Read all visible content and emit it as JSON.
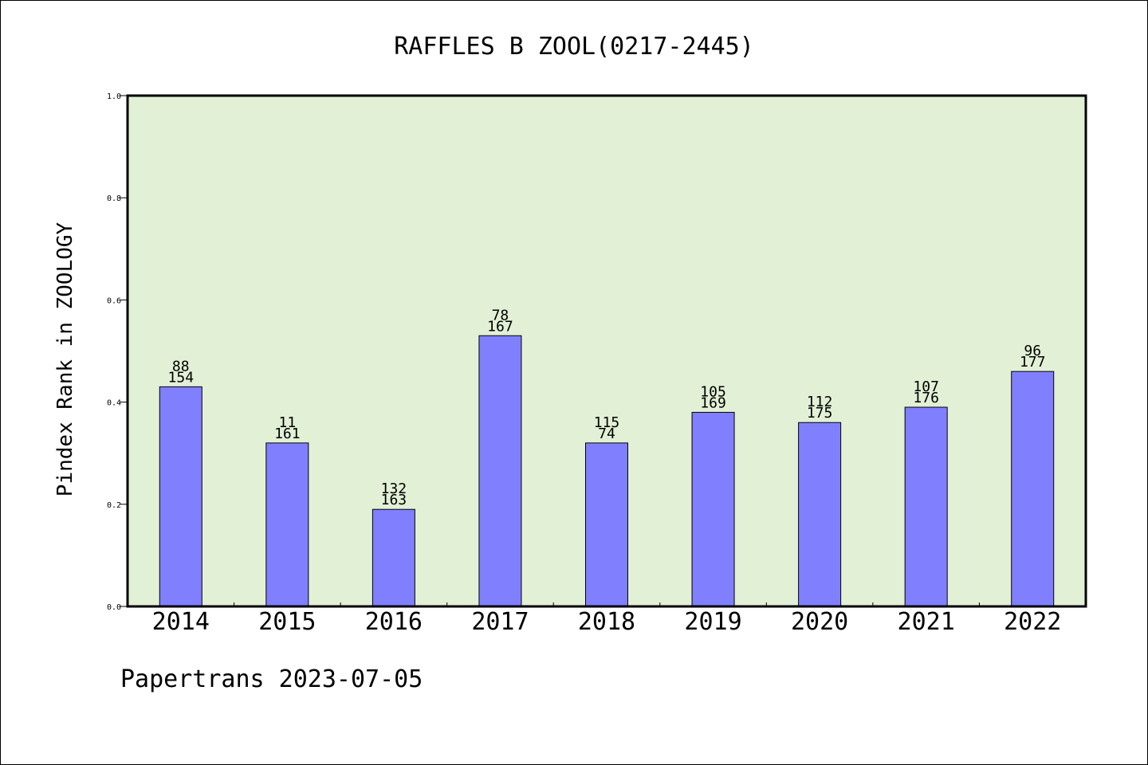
{
  "chart_data": {
    "type": "bar",
    "title": "RAFFLES B ZOOL(0217-2445)",
    "xlabel": "",
    "ylabel": "Pindex Rank in ZOOLOGY",
    "ylim": [
      0,
      1.0
    ],
    "yticks": [
      "0.0",
      "0.2",
      "0.4",
      "0.6",
      "0.8",
      "1.0"
    ],
    "categories": [
      "2014",
      "2015",
      "2016",
      "2017",
      "2018",
      "2019",
      "2020",
      "2021",
      "2022"
    ],
    "values": [
      0.43,
      0.32,
      0.19,
      0.53,
      0.32,
      0.38,
      0.36,
      0.39,
      0.46
    ],
    "labels_top": [
      "88",
      "11",
      "132",
      "78",
      "115",
      "105",
      "112",
      "107",
      "96"
    ],
    "labels_bottom": [
      "154",
      "161",
      "163",
      "167",
      "74",
      "169",
      "175",
      "176",
      "177"
    ],
    "grid": false,
    "colors": {
      "plot_background": "#e2f0d6",
      "bar_fill": "#8080ff",
      "bar_stroke": "#000000"
    }
  },
  "footer": {
    "text": "Papertrans 2023-07-05"
  }
}
